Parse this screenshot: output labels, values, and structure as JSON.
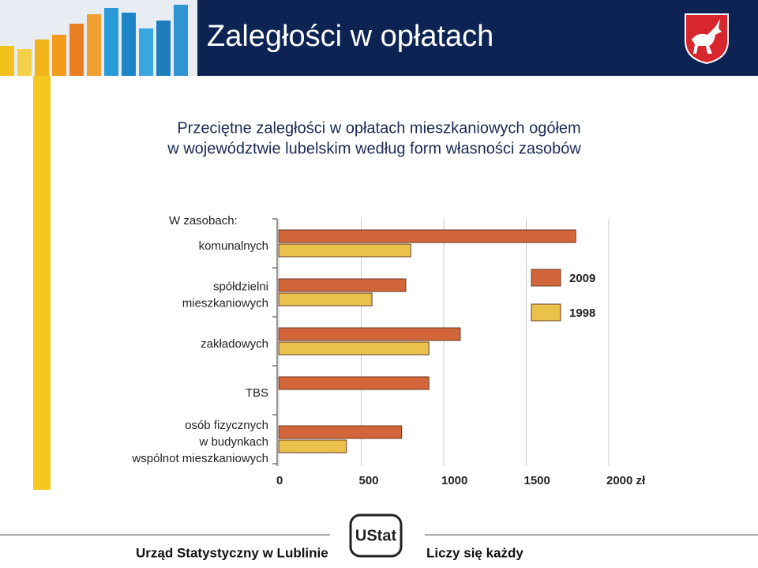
{
  "header": {
    "title": "Zaległości w opłatach"
  },
  "chart_data": {
    "type": "bar",
    "orientation": "horizontal",
    "title": [
      "Przeciętne zaległości w opłatach mieszkaniowych ogółem",
      "w województwie lubelskim według form własności zasobów"
    ],
    "category_heading": "W zasobach:",
    "categories": [
      "komunalnych",
      "spółdzielni\nmieszkaniowych",
      "zakładowych",
      "TBS",
      "osób fizycznych\nw budynkach\nwspólnot mieszkaniowych"
    ],
    "series": [
      {
        "name": "2009",
        "color": "#d2663a",
        "values": [
          1800,
          770,
          1100,
          910,
          745
        ]
      },
      {
        "name": "1998",
        "color": "#eac14b",
        "values": [
          800,
          565,
          910,
          null,
          410
        ]
      }
    ],
    "xlim": [
      0,
      2000
    ],
    "xticks": [
      0,
      500,
      1000,
      1500,
      {
        "value": 2000,
        "label": "2000 zł"
      }
    ],
    "grid": true,
    "legend": "right"
  },
  "footer": {
    "left": "Urząd Statystyczny w Lublinie",
    "logo": "UStat",
    "right": "Liczy się każdy"
  }
}
